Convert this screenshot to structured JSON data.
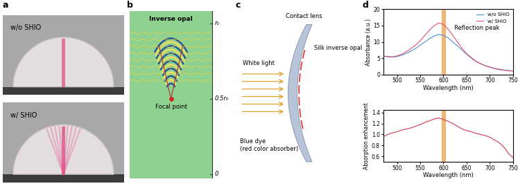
{
  "panel_labels": [
    "a",
    "b",
    "c",
    "d"
  ],
  "photos": {
    "labels": [
      "w/o SHIO",
      "w/ SHIO"
    ]
  },
  "simulation": {
    "title": "Inverse opal",
    "focal_label": "Focal point",
    "axis_labels": [
      "r₀",
      "0.5r₀",
      "0"
    ]
  },
  "schematic": {
    "light": "White light",
    "lens": "Contact lens",
    "opal": "Silk inverse opal",
    "dye": "Blue dye\n(red color absorber)"
  },
  "chart_data": [
    {
      "type": "line",
      "x": [
        470,
        480,
        490,
        500,
        510,
        520,
        530,
        540,
        550,
        560,
        570,
        580,
        590,
        600,
        610,
        620,
        630,
        640,
        650,
        660,
        670,
        680,
        690,
        700,
        710,
        720,
        730,
        740,
        750
      ],
      "series": [
        {
          "name": "w/o SHIO",
          "color": "#4a90d9",
          "values": [
            5.6,
            5.4,
            5.3,
            5.5,
            5.9,
            6.5,
            7.2,
            8.0,
            9.0,
            10.0,
            11.0,
            11.8,
            12.3,
            12.0,
            11.2,
            10.0,
            8.8,
            7.5,
            6.2,
            5.0,
            4.0,
            3.3,
            2.7,
            2.3,
            1.9,
            1.6,
            1.4,
            1.2,
            1.1
          ]
        },
        {
          "name": "w/ SHIO",
          "color": "#e8506e",
          "values": [
            5.6,
            5.5,
            5.4,
            5.7,
            6.2,
            7.0,
            8.0,
            9.0,
            10.4,
            12.0,
            13.6,
            15.0,
            15.8,
            15.4,
            13.9,
            12.0,
            10.0,
            8.0,
            6.4,
            5.2,
            4.1,
            3.3,
            2.7,
            2.2,
            1.8,
            1.5,
            1.3,
            1.1,
            1.0
          ]
        }
      ],
      "x_label": "Wavelength (nm)",
      "y_label": "Absorbance (a.u.)",
      "xlim": [
        470,
        750
      ],
      "ylim": [
        0,
        20
      ],
      "xticks": [
        500,
        550,
        600,
        650,
        700,
        750
      ],
      "yticks": [
        0,
        5,
        10,
        15,
        20
      ],
      "legend": "upper right",
      "annotation": "Reflection peak",
      "band": [
        596,
        606
      ]
    },
    {
      "type": "line",
      "x": [
        470,
        480,
        490,
        500,
        510,
        520,
        530,
        540,
        550,
        560,
        570,
        580,
        590,
        600,
        610,
        620,
        630,
        640,
        650,
        660,
        670,
        680,
        690,
        700,
        710,
        720,
        730,
        740,
        750
      ],
      "values": [
        0.96,
        1.0,
        1.03,
        1.05,
        1.08,
        1.1,
        1.12,
        1.15,
        1.18,
        1.22,
        1.25,
        1.28,
        1.3,
        1.27,
        1.24,
        1.2,
        1.15,
        1.1,
        1.07,
        1.05,
        1.02,
        1.0,
        0.98,
        0.95,
        0.9,
        0.85,
        0.78,
        0.66,
        0.58
      ],
      "color": "#d9364f",
      "x_label": "Wavelength (nm)",
      "y_label": "Absorption enhancement",
      "xlim": [
        470,
        750
      ],
      "ylim": [
        0.5,
        1.45
      ],
      "xticks": [
        500,
        550,
        600,
        650,
        700,
        750
      ],
      "yticks": [
        0.6,
        0.8,
        1.0,
        1.2,
        1.4
      ],
      "band": [
        596,
        606
      ]
    }
  ]
}
